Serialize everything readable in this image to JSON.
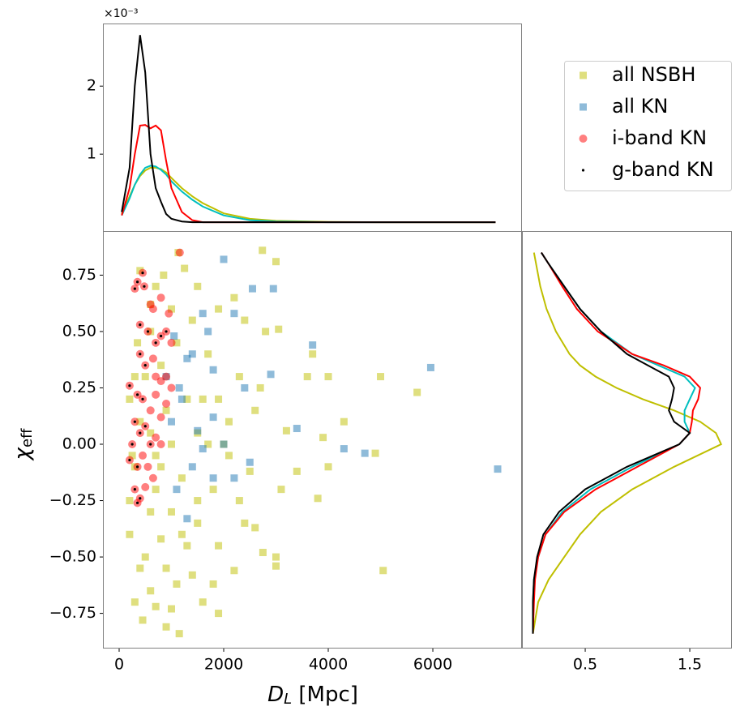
{
  "chart_data": [
    {
      "type": "line",
      "y_offset_label": "×10⁻³",
      "xlim": [
        -310,
        7705
      ],
      "ylim": [
        -0.13,
        2.92
      ],
      "yticks": [
        1,
        2
      ],
      "x": [
        50,
        200,
        300,
        400,
        500,
        600,
        700,
        800,
        900,
        1000,
        1200,
        1400,
        1600,
        2000,
        2500,
        3000,
        4000,
        5000,
        6000,
        7200
      ],
      "series": [
        {
          "color": "#bfbf00",
          "values": [
            0.12,
            0.38,
            0.55,
            0.68,
            0.76,
            0.8,
            0.8,
            0.78,
            0.73,
            0.65,
            0.5,
            0.38,
            0.28,
            0.13,
            0.05,
            0.02,
            0.005,
            0,
            0,
            0
          ]
        },
        {
          "color": "#00bfbf",
          "values": [
            0.1,
            0.35,
            0.55,
            0.7,
            0.8,
            0.83,
            0.82,
            0.77,
            0.7,
            0.6,
            0.45,
            0.33,
            0.23,
            0.1,
            0.03,
            0.01,
            0,
            0,
            0,
            0
          ]
        },
        {
          "color": "#ff0000",
          "values": [
            0.1,
            0.5,
            1.0,
            1.42,
            1.43,
            1.38,
            1.42,
            1.35,
            0.9,
            0.5,
            0.15,
            0.03,
            0,
            0,
            0,
            0,
            0,
            0,
            0,
            0
          ]
        },
        {
          "color": "#000000",
          "values": [
            0.15,
            0.8,
            2.0,
            2.75,
            2.2,
            1.0,
            0.5,
            0.3,
            0.12,
            0.05,
            0.01,
            0,
            0,
            0,
            0,
            0,
            0,
            0,
            0,
            0
          ]
        }
      ]
    },
    {
      "type": "scatter",
      "xlabel": {
        "symbol": "D",
        "subscript": "L",
        "unit": " [Mpc]"
      },
      "ylabel": {
        "symbol": "χ",
        "subscript": "eff"
      },
      "xlim": [
        -310,
        7705
      ],
      "ylim": [
        -0.906,
        0.942
      ],
      "xticks": [
        0,
        2000,
        4000,
        6000
      ],
      "yticks": [
        {
          "value": -0.75,
          "label": "−0.75"
        },
        {
          "value": -0.5,
          "label": "−0.50"
        },
        {
          "value": -0.25,
          "label": "−0.25"
        },
        {
          "value": 0,
          "label": "0.00"
        },
        0.25,
        {
          "value": 0.5,
          "label": "0.50"
        },
        0.75
      ],
      "legend": "upper right",
      "series": [
        {
          "name": "all NSBH",
          "color": "#bfbf00",
          "marker": "square",
          "x": [
            1130,
            2740,
            3000,
            1250,
            400,
            850,
            1500,
            2200,
            600,
            1900,
            2400,
            3050,
            2800,
            3700,
            1100,
            4000,
            5000,
            3600,
            5700,
            2700,
            1600,
            900,
            2100,
            3900,
            4900,
            2000,
            1500,
            700,
            300,
            1200,
            2500,
            3400,
            4000,
            1800,
            2300,
            3800,
            600,
            1000,
            1500,
            2600,
            200,
            800,
            1300,
            1900,
            2750,
            3000,
            5050,
            400,
            900,
            1400,
            2200,
            3000,
            600,
            1100,
            1800,
            300,
            700,
            1000,
            1600,
            1900,
            450,
            1150,
            900,
            500,
            700,
            400,
            500,
            600,
            200,
            250,
            1300,
            1700,
            2100,
            1000,
            800,
            1400,
            350,
            1700,
            2300,
            2600,
            3200,
            3100,
            4300,
            200,
            800,
            1200,
            600,
            1500,
            1000,
            1900,
            2400,
            300,
            700
          ],
          "values": [
            0.85,
            0.86,
            0.81,
            0.78,
            0.77,
            0.75,
            0.7,
            0.65,
            0.62,
            0.6,
            0.55,
            0.51,
            0.5,
            0.4,
            0.45,
            0.3,
            0.3,
            0.3,
            0.23,
            0.25,
            0.2,
            0.15,
            0.1,
            0.03,
            -0.04,
            0,
            0.05,
            -0.05,
            -0.1,
            -0.15,
            -0.12,
            -0.12,
            -0.1,
            -0.2,
            -0.25,
            -0.24,
            -0.3,
            -0.3,
            -0.35,
            -0.37,
            -0.4,
            -0.42,
            -0.45,
            -0.45,
            -0.48,
            -0.5,
            -0.56,
            -0.55,
            -0.55,
            -0.58,
            -0.56,
            -0.54,
            -0.65,
            -0.62,
            -0.62,
            -0.7,
            -0.72,
            -0.73,
            -0.7,
            -0.75,
            -0.78,
            -0.84,
            -0.81,
            -0.5,
            -0.2,
            0.1,
            0.3,
            0.5,
            0.2,
            -0.05,
            0.2,
            0,
            -0.05,
            0,
            0.35,
            0.55,
            0.45,
            0.4,
            0.3,
            0.15,
            0.06,
            -0.2,
            0.1,
            -0.25,
            -0.1,
            -0.4,
            0.05,
            -0.25,
            0.6,
            0.2,
            -0.35,
            0.3,
            0.7
          ]
        },
        {
          "name": "all KN",
          "color": "#1f77b4",
          "marker": "square",
          "x": [
            2000,
            2550,
            2950,
            2200,
            1600,
            1700,
            3700,
            5960,
            1400,
            1300,
            1800,
            2900,
            2400,
            3400,
            4300,
            4700,
            7240,
            2500,
            1800,
            1500,
            1200,
            1600,
            2000,
            1400,
            1100,
            1800,
            2200,
            1300,
            1000,
            900,
            1050,
            1150
          ],
          "values": [
            0.82,
            0.69,
            0.69,
            0.58,
            0.58,
            0.5,
            0.44,
            0.34,
            0.4,
            0.38,
            0.33,
            0.31,
            0.25,
            0.07,
            -0.02,
            -0.04,
            -0.11,
            -0.08,
            0.12,
            0.06,
            0.2,
            -0.02,
            0,
            -0.1,
            -0.2,
            -0.15,
            -0.15,
            -0.33,
            0.1,
            0.3,
            0.48,
            0.25
          ]
        },
        {
          "name": "i-band KN",
          "color": "#ff0000",
          "marker": "circle",
          "x": [
            1160,
            300,
            350,
            450,
            480,
            600,
            650,
            800,
            950,
            400,
            550,
            700,
            800,
            900,
            1000,
            400,
            500,
            650,
            700,
            800,
            900,
            1000,
            200,
            350,
            450,
            600,
            700,
            800,
            900,
            300,
            400,
            500,
            600,
            700,
            800,
            200,
            350,
            450,
            550,
            650,
            300,
            400,
            500,
            350,
            250
          ],
          "values": [
            0.85,
            0.69,
            0.72,
            0.76,
            0.7,
            0.62,
            0.6,
            0.65,
            0.58,
            0.53,
            0.5,
            0.45,
            0.48,
            0.5,
            0.45,
            0.4,
            0.35,
            0.38,
            0.3,
            0.28,
            0.3,
            0.25,
            0.26,
            0.22,
            0.2,
            0.15,
            0.22,
            0.12,
            0.18,
            0.1,
            0.05,
            0.08,
            0,
            0.03,
            0,
            -0.07,
            -0.1,
            -0.05,
            -0.1,
            -0.15,
            -0.2,
            -0.24,
            -0.19,
            -0.26,
            0
          ]
        },
        {
          "name": "g-band KN",
          "color": "#000000",
          "marker": "point",
          "x": [
            300,
            350,
            450,
            480,
            400,
            550,
            400,
            500,
            200,
            350,
            450,
            300,
            400,
            200,
            350,
            300,
            400,
            350,
            500,
            250,
            600,
            700,
            800,
            900
          ],
          "values": [
            0.69,
            0.72,
            0.76,
            0.7,
            0.53,
            0.5,
            0.4,
            0.35,
            0.26,
            0.22,
            0.2,
            0.1,
            0.05,
            -0.07,
            -0.1,
            -0.2,
            -0.24,
            -0.26,
            0.08,
            0,
            0,
            0.45,
            0.48,
            0.5
          ]
        }
      ]
    },
    {
      "type": "line",
      "orientation": "horizontal",
      "xlim": [
        -0.105,
        1.895
      ],
      "ylim": [
        -0.906,
        0.942
      ],
      "xticks": [
        0.5,
        1.5
      ],
      "y": [
        -0.84,
        -0.7,
        -0.6,
        -0.5,
        -0.4,
        -0.3,
        -0.2,
        -0.1,
        0,
        0.05,
        0.1,
        0.15,
        0.2,
        0.25,
        0.3,
        0.35,
        0.4,
        0.5,
        0.6,
        0.7,
        0.8,
        0.85
      ],
      "series": [
        {
          "color": "#bfbf00",
          "values": [
            0,
            0.05,
            0.15,
            0.3,
            0.45,
            0.65,
            0.95,
            1.35,
            1.8,
            1.75,
            1.6,
            1.35,
            1.05,
            0.8,
            0.6,
            0.45,
            0.35,
            0.22,
            0.13,
            0.07,
            0.03,
            0.01
          ]
        },
        {
          "color": "#00bfbf",
          "values": [
            0,
            0,
            0.01,
            0.05,
            0.12,
            0.28,
            0.55,
            0.95,
            1.4,
            1.5,
            1.45,
            1.45,
            1.5,
            1.55,
            1.45,
            1.2,
            0.95,
            0.65,
            0.45,
            0.3,
            0.15,
            0.08
          ]
        },
        {
          "color": "#ff0000",
          "values": [
            0,
            0.01,
            0.02,
            0.05,
            0.12,
            0.3,
            0.6,
            1.0,
            1.4,
            1.5,
            1.52,
            1.53,
            1.58,
            1.6,
            1.5,
            1.25,
            0.95,
            0.62,
            0.42,
            0.28,
            0.15,
            0.08
          ]
        },
        {
          "color": "#000000",
          "values": [
            0,
            0,
            0.01,
            0.04,
            0.1,
            0.25,
            0.5,
            0.9,
            1.4,
            1.5,
            1.35,
            1.3,
            1.33,
            1.35,
            1.3,
            1.1,
            0.9,
            0.65,
            0.45,
            0.3,
            0.15,
            0.08
          ]
        }
      ]
    }
  ]
}
